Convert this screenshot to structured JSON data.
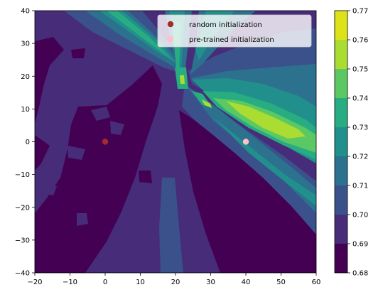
{
  "chart_data": {
    "type": "heatmap",
    "subtype": "filled-contour",
    "title": "",
    "xlabel": "",
    "ylabel": "",
    "xlim": [
      -20,
      60
    ],
    "ylim": [
      -40,
      40
    ],
    "xticks": [
      -20,
      -10,
      0,
      10,
      20,
      30,
      40,
      50,
      60
    ],
    "yticks": [
      -40,
      -30,
      -20,
      -10,
      0,
      10,
      20,
      30,
      40
    ],
    "grid": false,
    "colorbar": {
      "levels": [
        0.68,
        0.69,
        0.7,
        0.71,
        0.72,
        0.73,
        0.74,
        0.75,
        0.76,
        0.77
      ],
      "tick_labels": [
        "0.68",
        "0.69",
        "0.70",
        "0.71",
        "0.72",
        "0.73",
        "0.74",
        "0.75",
        "0.76",
        "0.77"
      ],
      "band_colors": [
        "#440154",
        "#472c7a",
        "#3b518b",
        "#2c718e",
        "#21908d",
        "#27ad81",
        "#5cc863",
        "#aadc32",
        "#dde318"
      ]
    },
    "points": [
      {
        "name": "random initialization",
        "x": 0,
        "y": 0,
        "color": "#a52a2a"
      },
      {
        "name": "pre-trained initialization",
        "x": 40,
        "y": 0,
        "color": "#ffc0cb"
      }
    ],
    "legend_position": "top-right"
  }
}
